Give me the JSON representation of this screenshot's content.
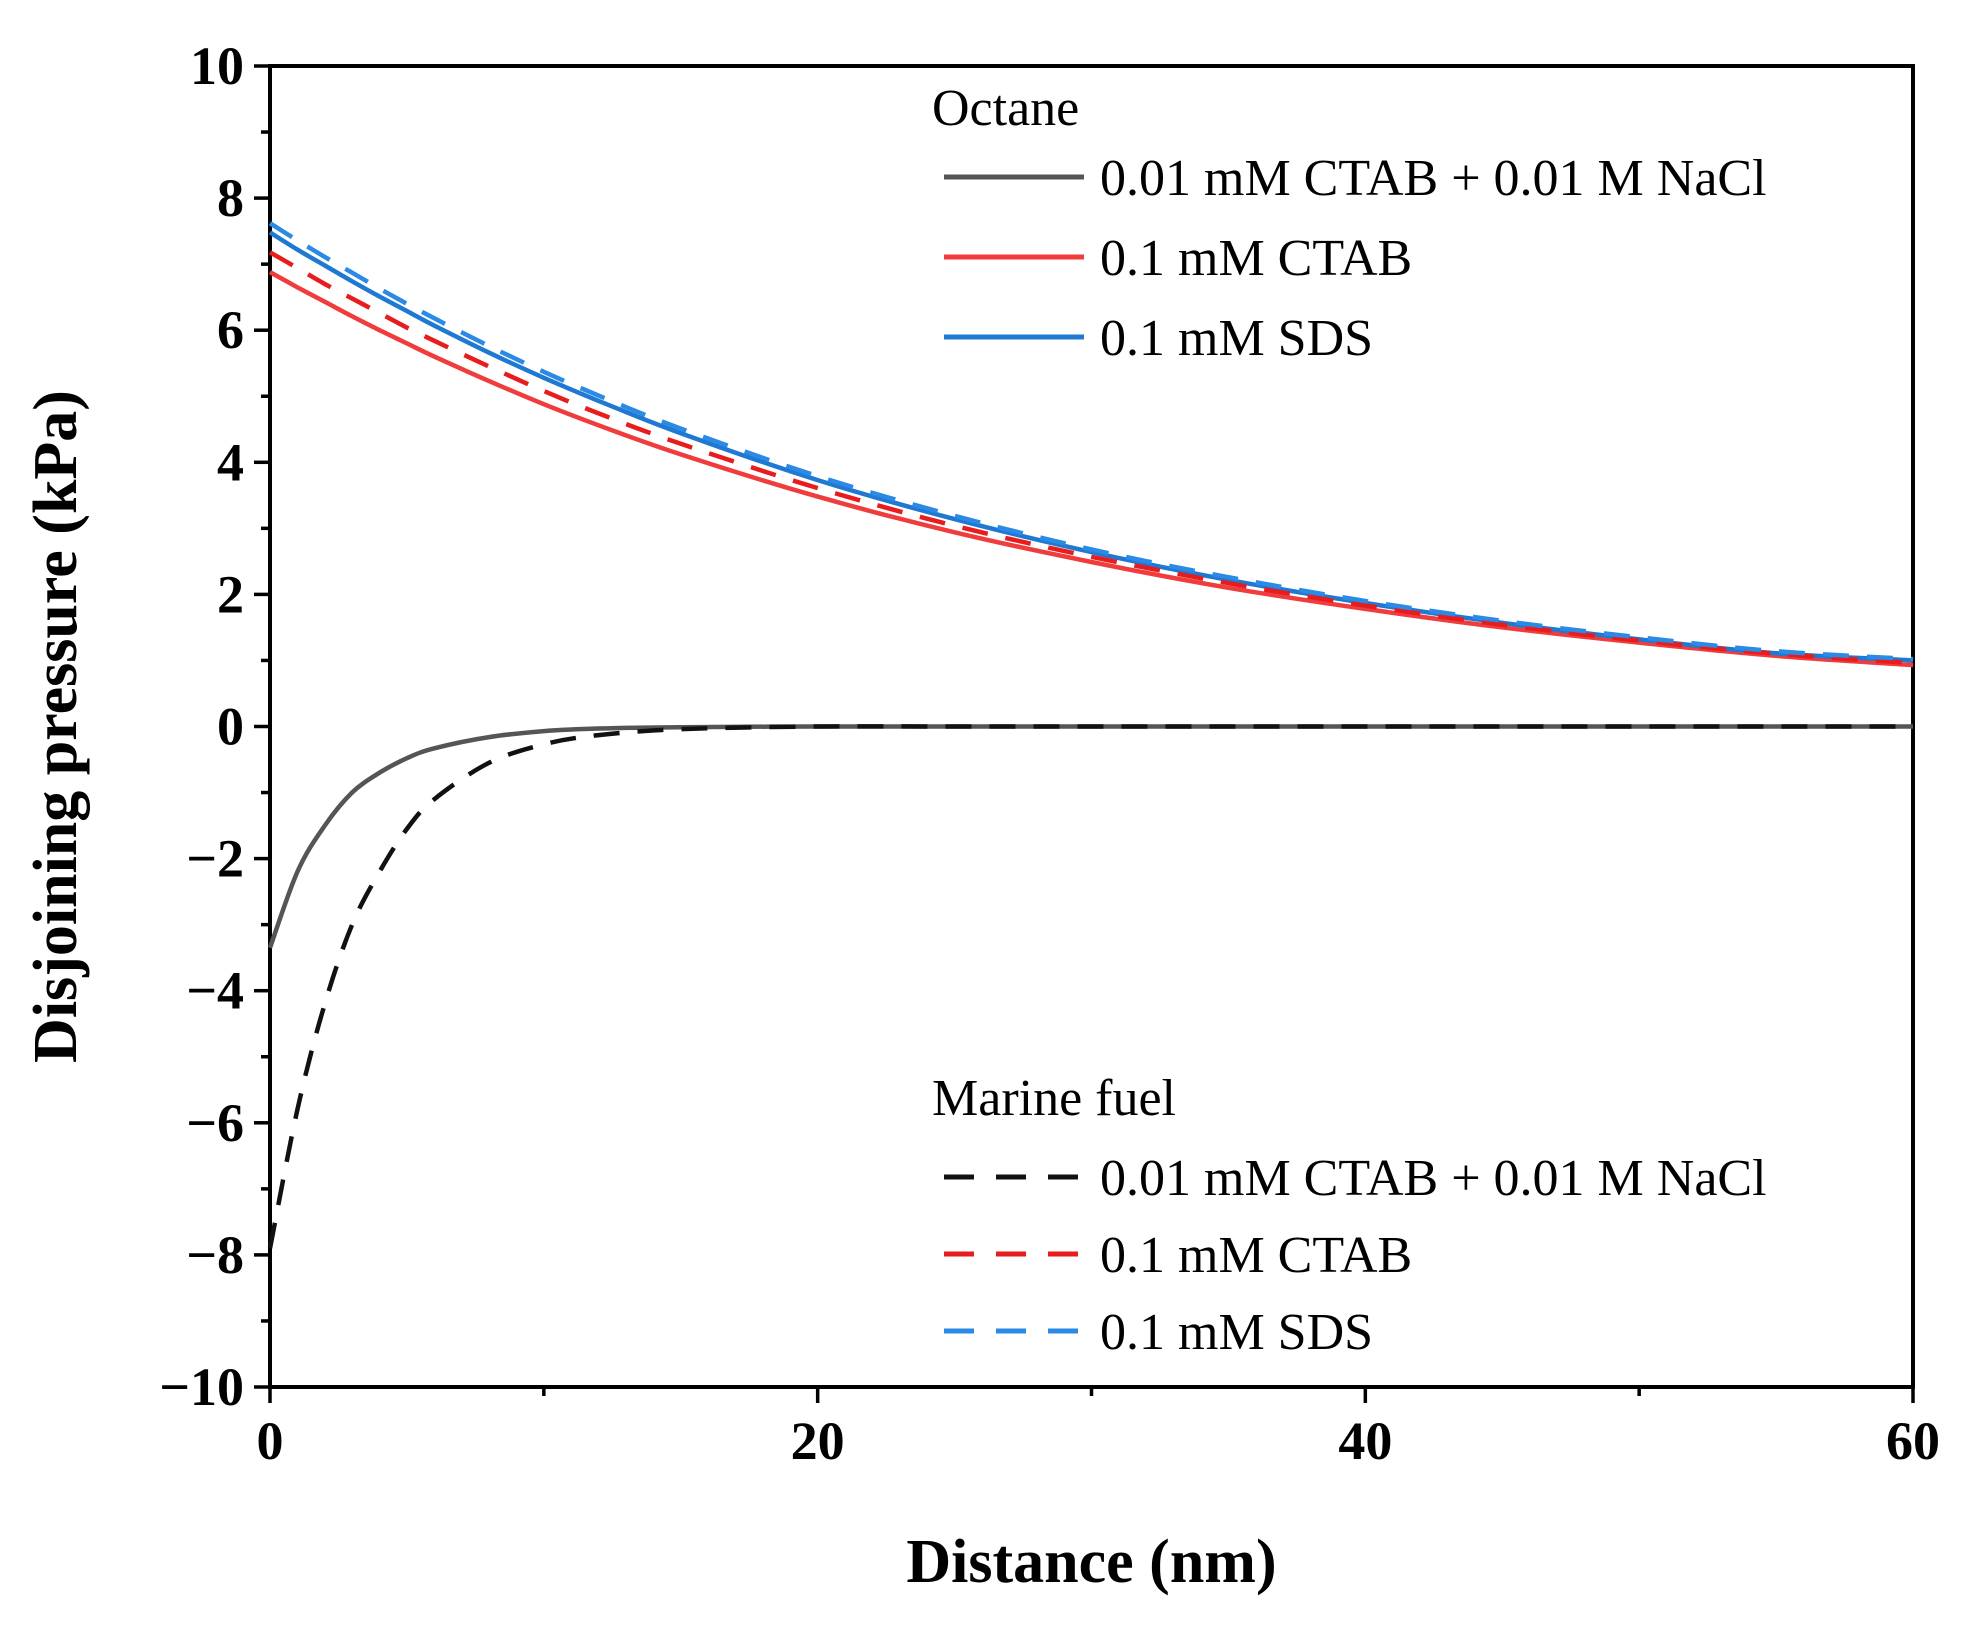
{
  "chart_data": {
    "type": "line",
    "title": "",
    "xlabel": "Distance (nm)",
    "ylabel": "Disjoining pressure (kPa)",
    "xlim": [
      0,
      60
    ],
    "ylim": [
      -10,
      10
    ],
    "xticks": [
      0,
      20,
      40,
      60
    ],
    "xtick_labels": [
      "0",
      "20",
      "40",
      "60"
    ],
    "yticks": [
      -10,
      -8,
      -6,
      -4,
      -2,
      0,
      2,
      4,
      6,
      8,
      10
    ],
    "ytick_labels": [
      "−10",
      "−8",
      "−6",
      "−4",
      "−2",
      "0",
      "2",
      "4",
      "6",
      "8",
      "10"
    ],
    "grid": false,
    "legend_groups": [
      {
        "title": "Octane",
        "placement": "top-right",
        "entries": [
          "0.01 mM CTAB + 0.01 M NaCl",
          "0.1 mM CTAB",
          "0.1 mM SDS"
        ]
      },
      {
        "title": "Marine fuel",
        "placement": "bottom-right",
        "entries": [
          "0.01 mM CTAB + 0.01 M NaCl",
          "0.1 mM CTAB",
          "0.1 mM SDS"
        ]
      }
    ],
    "x": [
      0,
      1,
      2,
      3,
      4,
      5,
      6,
      8,
      10,
      12,
      15,
      20,
      25,
      30,
      35,
      40,
      45,
      50,
      55,
      60
    ],
    "series": [
      {
        "name": "0.01 mM CTAB + 0.01 M NaCl",
        "group": "Octane",
        "color": "#555555",
        "dash": "solid",
        "values": [
          -3.35,
          -2.2,
          -1.5,
          -1.0,
          -0.7,
          -0.48,
          -0.33,
          -0.16,
          -0.07,
          -0.03,
          -0.01,
          0,
          0,
          0,
          0,
          0,
          0,
          0,
          0,
          0
        ]
      },
      {
        "name": "0.1 mM CTAB",
        "group": "Octane",
        "color": "#f03c3c",
        "dash": "solid",
        "values": [
          6.88,
          6.65,
          6.43,
          6.21,
          6.0,
          5.8,
          5.6,
          5.23,
          4.88,
          4.56,
          4.12,
          3.48,
          2.94,
          2.49,
          2.1,
          1.78,
          1.5,
          1.27,
          1.07,
          0.93
        ]
      },
      {
        "name": "0.1 mM SDS",
        "group": "Octane",
        "color": "#1f78d2",
        "dash": "solid",
        "values": [
          7.48,
          7.22,
          6.98,
          6.74,
          6.51,
          6.29,
          6.07,
          5.66,
          5.28,
          4.93,
          4.44,
          3.73,
          3.14,
          2.64,
          2.22,
          1.87,
          1.57,
          1.32,
          1.11,
          1.0
        ]
      },
      {
        "name": "0.01 mM CTAB + 0.01 M NaCl",
        "group": "Marine fuel",
        "color": "#111111",
        "dash": "dashed",
        "values": [
          -7.9,
          -5.8,
          -4.2,
          -3.0,
          -2.2,
          -1.55,
          -1.1,
          -0.55,
          -0.27,
          -0.13,
          -0.04,
          0,
          0,
          0,
          0,
          0,
          0,
          0,
          0,
          0
        ]
      },
      {
        "name": "0.1 mM CTAB",
        "group": "Marine fuel",
        "color": "#e81c1c",
        "dash": "dashed",
        "values": [
          7.18,
          6.94,
          6.7,
          6.48,
          6.26,
          6.04,
          5.84,
          5.45,
          5.08,
          4.74,
          4.28,
          3.61,
          3.04,
          2.57,
          2.17,
          1.83,
          1.54,
          1.3,
          1.1,
          0.96
        ]
      },
      {
        "name": "0.1 mM SDS",
        "group": "Marine fuel",
        "color": "#2a8ae6",
        "dash": "dashed",
        "values": [
          7.62,
          7.36,
          7.11,
          6.87,
          6.63,
          6.4,
          6.18,
          5.76,
          5.37,
          5.01,
          4.51,
          3.79,
          3.19,
          2.68,
          2.26,
          1.9,
          1.6,
          1.35,
          1.14,
          1.02
        ]
      }
    ]
  }
}
